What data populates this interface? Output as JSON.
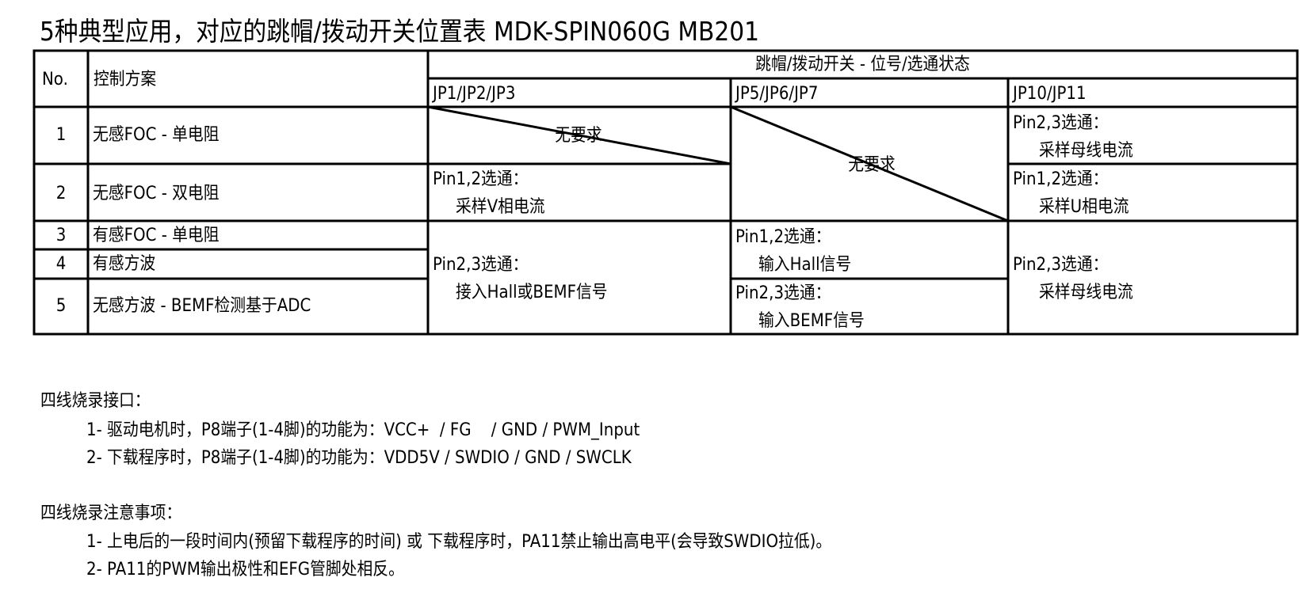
{
  "title": "5种典型应用，对应的跳帽/拨动开关位置表 MDK-SPIN060G MB201",
  "table": {
    "headers": {
      "no": "No.",
      "scheme": "控制方案",
      "group": "跳帽/拨动开关 - 位号/选通状态",
      "col_jp1": "JP1/JP2/JP3",
      "col_jp5": "JP5/JP6/JP7",
      "col_jp10": "JP10/JP11"
    },
    "rows": [
      {
        "no": "1",
        "scheme": "无感FOC - 单电阻"
      },
      {
        "no": "2",
        "scheme": "无感FOC - 双电阻"
      },
      {
        "no": "3",
        "scheme": "有感FOC - 单电阻"
      },
      {
        "no": "4",
        "scheme": "有感方波"
      },
      {
        "no": "5",
        "scheme": "无感方波 - BEMF检测基于ADC"
      }
    ],
    "cells": {
      "jp1_r1": "无要求",
      "jp1_r2": {
        "line1": "Pin1,2选通：",
        "line2": "采样V相电流"
      },
      "jp1_r345": {
        "line1": "Pin2,3选通：",
        "line2": "接入Hall或BEMF信号"
      },
      "jp5_r12": "无要求",
      "jp5_r34": {
        "line1": "Pin1,2选通：",
        "line2": "输入Hall信号"
      },
      "jp5_r5": {
        "line1": "Pin2,3选通：",
        "line2": "输入BEMF信号"
      },
      "jp10_r1": {
        "line1": "Pin2,3选通：",
        "line2": "采样母线电流"
      },
      "jp10_r2": {
        "line1": "Pin1,2选通：",
        "line2": "采样U相电流"
      },
      "jp10_r345": {
        "line1": "Pin2,3选通：",
        "line2": "采样母线电流"
      }
    }
  },
  "notes": [
    {
      "heading": "四线烧录接口：",
      "items": [
        "1- 驱动电机时，P8端子(1-4脚)的功能为：VCC+  / FG    / GND / PWM_Input",
        "2- 下载程序时，P8端子(1-4脚)的功能为：VDD5V / SWDIO / GND / SWCLK"
      ]
    },
    {
      "heading": "四线烧录注意事项：",
      "items": [
        "1- 上电后的一段时间内(预留下载程序的时间) 或 下载程序时，PA11禁止输出高电平(会导致SWDIO拉低)。",
        "2- PA11的PWM输出极性和EFG管脚处相反。"
      ]
    }
  ]
}
